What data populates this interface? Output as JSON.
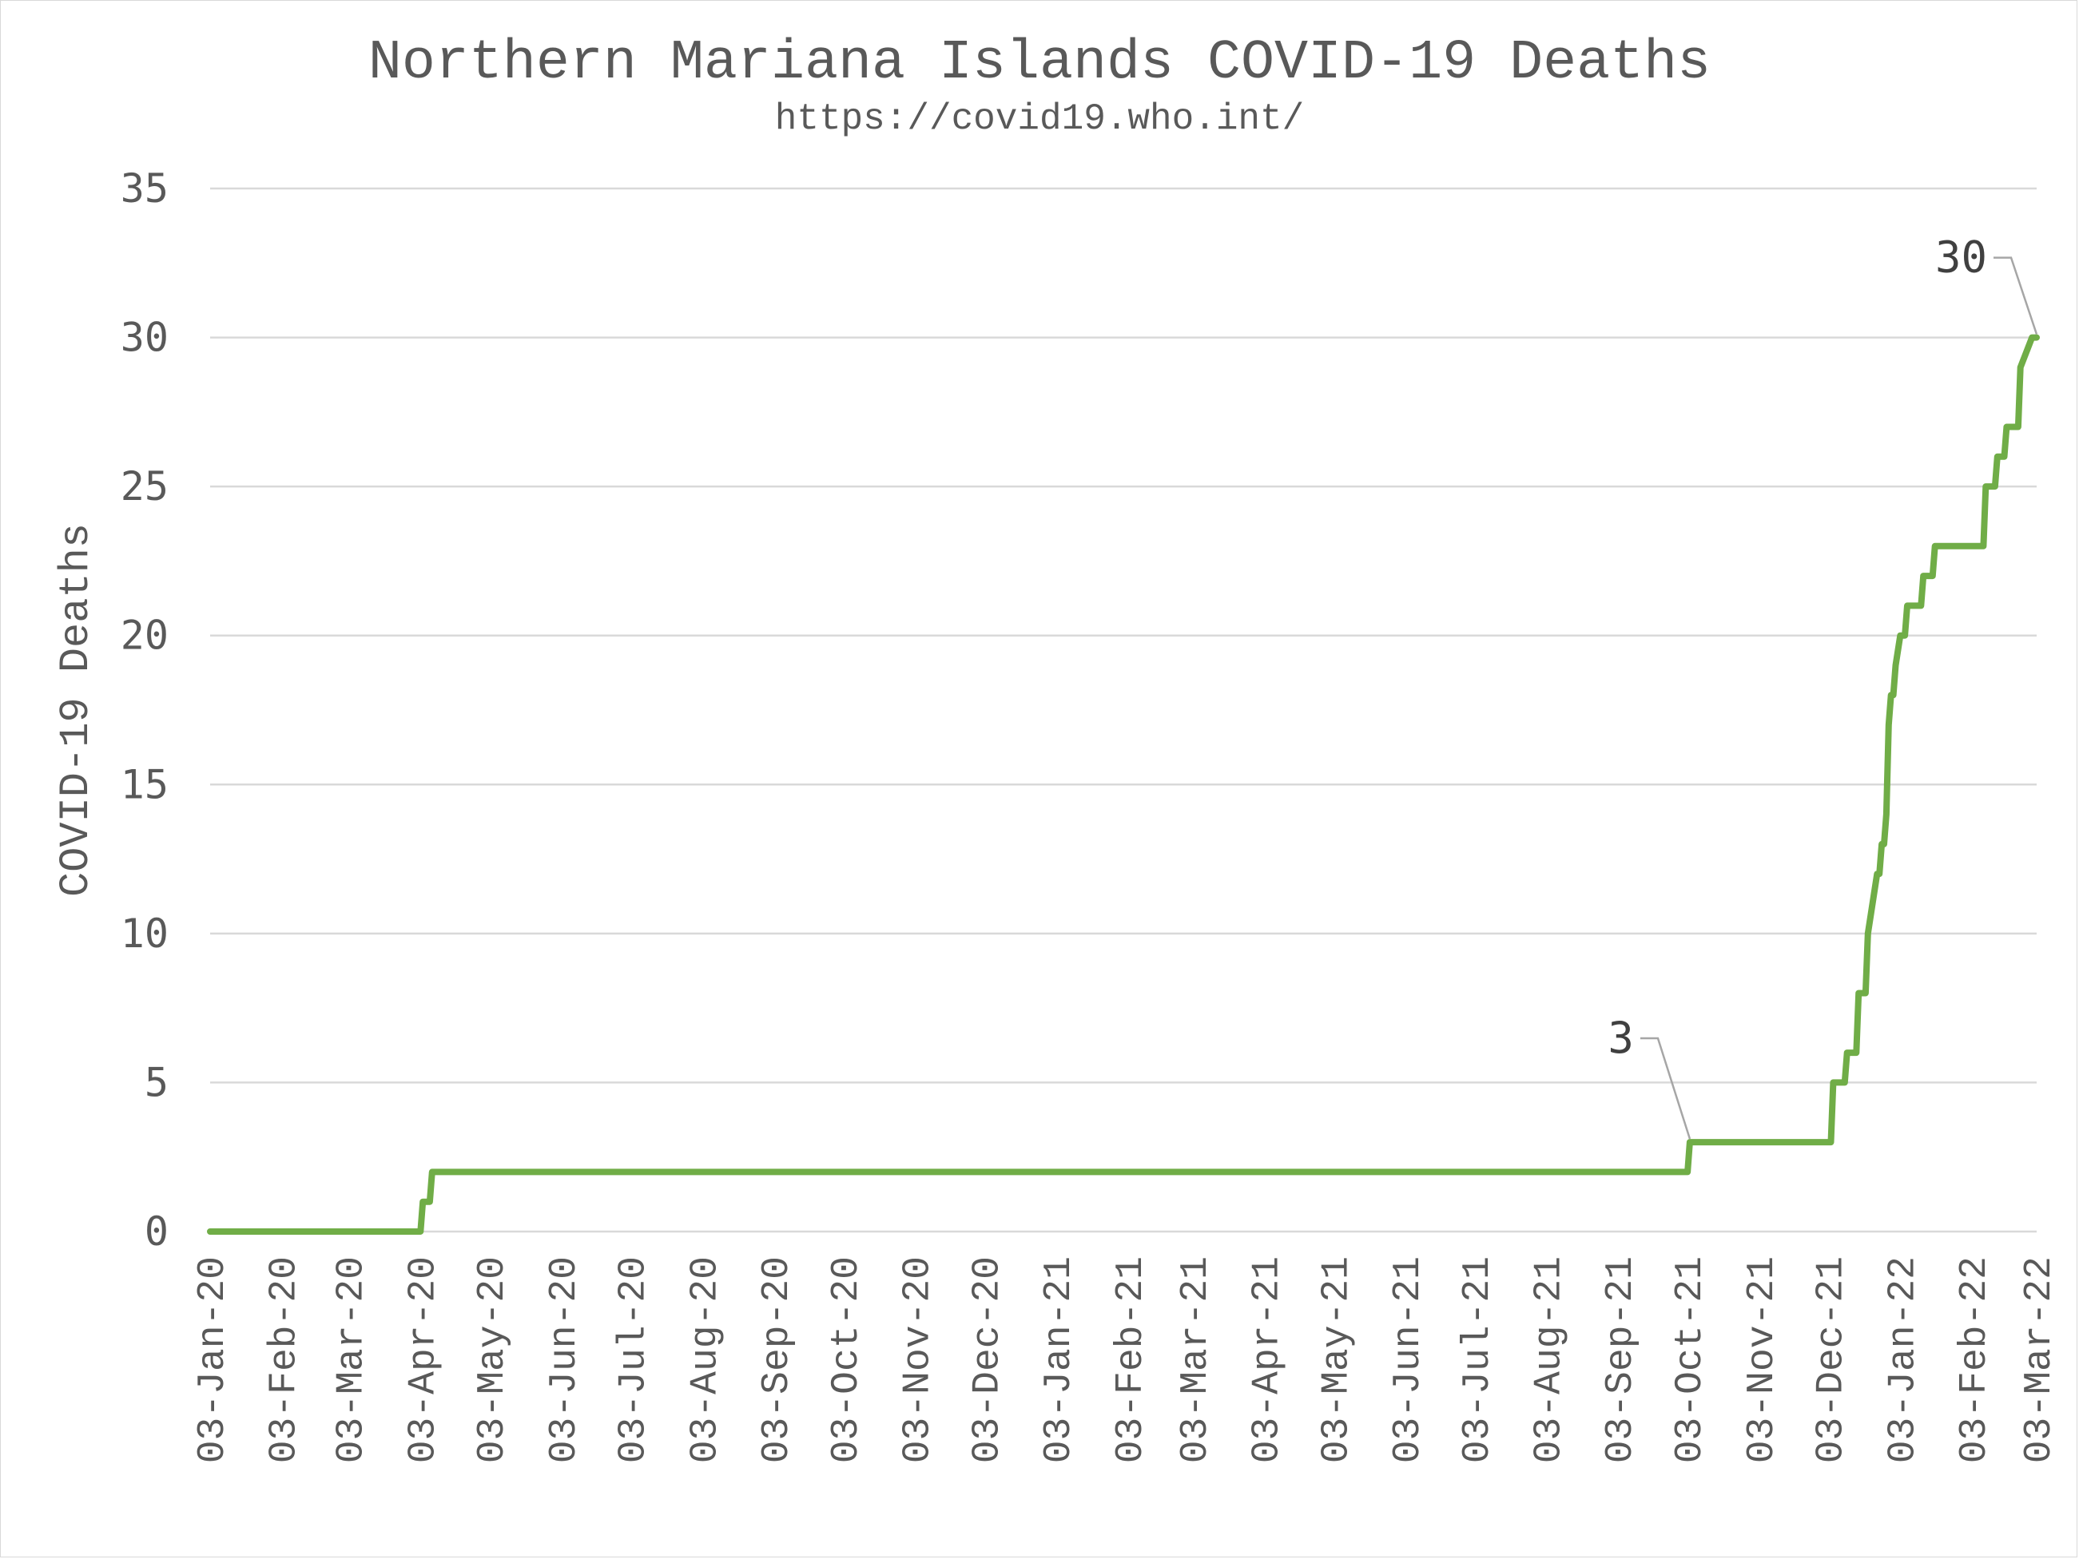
{
  "chart_data": {
    "type": "line",
    "title": "Northern Mariana Islands COVID-19 Deaths",
    "subtitle": "https://covid19.who.int/",
    "xlabel": "",
    "ylabel": "COVID-19 Deaths",
    "ylim": [
      0,
      35
    ],
    "yticks": [
      "0",
      "5",
      "10",
      "15",
      "20",
      "25",
      "30",
      "35"
    ],
    "xlim": [
      "2020-01-03",
      "2022-03-03"
    ],
    "xticks": [
      "03-Jan-20",
      "03-Feb-20",
      "03-Mar-20",
      "03-Apr-20",
      "03-May-20",
      "03-Jun-20",
      "03-Jul-20",
      "03-Aug-20",
      "03-Sep-20",
      "03-Oct-20",
      "03-Nov-20",
      "03-Dec-20",
      "03-Jan-21",
      "03-Feb-21",
      "03-Mar-21",
      "03-Apr-21",
      "03-May-21",
      "03-Jun-21",
      "03-Jul-21",
      "03-Aug-21",
      "03-Sep-21",
      "03-Oct-21",
      "03-Nov-21",
      "03-Dec-21",
      "03-Jan-22",
      "03-Feb-22",
      "03-Mar-22"
    ],
    "grid": true,
    "legend": "none",
    "color": "#70ad47",
    "series": [
      {
        "x": [
          "2020-01-03",
          "2020-04-03",
          "2020-04-04",
          "2020-04-07",
          "2020-04-08",
          "2021-10-03",
          "2021-10-04",
          "2021-12-04",
          "2021-12-05",
          "2021-12-10",
          "2021-12-11",
          "2021-12-15",
          "2021-12-16",
          "2021-12-19",
          "2021-12-20",
          "2021-12-24",
          "2021-12-25",
          "2021-12-26",
          "2021-12-27",
          "2021-12-28",
          "2021-12-29",
          "2021-12-30",
          "2021-12-31",
          "2022-01-01",
          "2022-01-03",
          "2022-01-04",
          "2022-01-05",
          "2022-01-06",
          "2022-01-07",
          "2022-01-12",
          "2022-01-13",
          "2022-01-17",
          "2022-01-18",
          "2022-01-21",
          "2022-01-22",
          "2022-02-08",
          "2022-02-09",
          "2022-02-13",
          "2022-02-14",
          "2022-02-17",
          "2022-02-18",
          "2022-02-23",
          "2022-02-24",
          "2022-03-01",
          "2022-03-03"
        ],
        "y": [
          0,
          0,
          1,
          1,
          2,
          2,
          3,
          3,
          5,
          5,
          6,
          6,
          8,
          8,
          10,
          12,
          12,
          13,
          13,
          14,
          17,
          18,
          18,
          19,
          20,
          20,
          20,
          21,
          21,
          21,
          22,
          22,
          23,
          23,
          23,
          23,
          25,
          25,
          26,
          26,
          27,
          27,
          29,
          30,
          30
        ]
      }
    ],
    "annotations": [
      {
        "text": "3",
        "x": "2021-10-04",
        "y": 3
      },
      {
        "text": "30",
        "x": "2022-03-03",
        "y": 30
      }
    ]
  }
}
